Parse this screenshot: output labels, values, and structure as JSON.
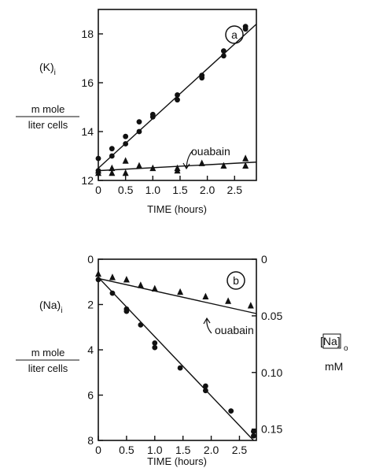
{
  "chart_data": [
    {
      "type": "scatter",
      "panel": "a",
      "ylabel_main": "(K)",
      "ylabel_sub": "i",
      "unit_num": "m mole",
      "unit_den": "liter cells",
      "xlabel": "TIME (hours)",
      "xlim": [
        0,
        2.9
      ],
      "ylim": [
        12,
        19
      ],
      "x_ticks": [
        "0",
        "0.5",
        "1.0",
        "1.5",
        "2.0",
        "2.5"
      ],
      "x_tick_values": [
        0,
        0.5,
        1.0,
        1.5,
        2.0,
        2.5
      ],
      "y_ticks": [
        "12",
        "14",
        "16",
        "18"
      ],
      "y_tick_values": [
        12,
        14,
        16,
        18
      ],
      "annotation": "ouabain",
      "series": [
        {
          "marker": "circle",
          "x": [
            0,
            0,
            0.25,
            0.25,
            0.5,
            0.5,
            0.75,
            0.75,
            1.0,
            1.0,
            1.45,
            1.45,
            1.9,
            1.9,
            2.3,
            2.3,
            2.7,
            2.7
          ],
          "y": [
            12.9,
            12.4,
            13.3,
            13.0,
            13.8,
            13.5,
            14.4,
            14.0,
            14.7,
            14.6,
            15.5,
            15.3,
            16.3,
            16.2,
            17.3,
            17.1,
            18.3,
            18.2
          ],
          "fit": [
            [
              0,
              12.5
            ],
            [
              2.9,
              18.4
            ]
          ]
        },
        {
          "marker": "triangle",
          "x": [
            0,
            0,
            0.25,
            0.25,
            0.5,
            0.5,
            0.75,
            1.0,
            1.45,
            1.45,
            1.9,
            2.3,
            2.7,
            2.7
          ],
          "y": [
            12.4,
            12.3,
            12.5,
            12.3,
            12.8,
            12.3,
            12.6,
            12.5,
            12.5,
            12.4,
            12.7,
            12.6,
            12.9,
            12.6
          ],
          "fit": [
            [
              0,
              12.4
            ],
            [
              2.9,
              12.75
            ]
          ]
        }
      ]
    },
    {
      "type": "scatter",
      "panel": "b",
      "ylabel_main": "(Na)",
      "ylabel_sub": "i",
      "unit_num": "m mole",
      "unit_den": "liter cells",
      "xlabel": "TIME (hours)",
      "xlim": [
        0,
        2.8
      ],
      "ylim": [
        0,
        8
      ],
      "y_inverted": true,
      "x_ticks": [
        "0",
        "0.5",
        "1.0",
        "1.5",
        "2.0",
        "2.5"
      ],
      "x_tick_values": [
        0,
        0.5,
        1.0,
        1.5,
        2.0,
        2.5
      ],
      "y_ticks": [
        "0",
        "2",
        "4",
        "6",
        "8"
      ],
      "y_tick_values": [
        0,
        2,
        4,
        6,
        8
      ],
      "right_axis": {
        "label_main": "[Na]",
        "label_sub": "o",
        "unit": "mM",
        "ticks": [
          "0",
          "0.05",
          "0.10",
          "0.15"
        ],
        "tick_values": [
          0,
          0.05,
          0.1,
          0.15
        ],
        "range": [
          0,
          0.16
        ]
      },
      "annotation": "ouabain",
      "series": [
        {
          "marker": "triangle",
          "axis": "right",
          "x": [
            0,
            0.25,
            0.5,
            0.75,
            1.0,
            1.45,
            1.9,
            2.3,
            2.7
          ],
          "y": [
            0.013,
            0.016,
            0.018,
            0.023,
            0.026,
            0.029,
            0.033,
            0.037,
            0.041
          ],
          "fit": [
            [
              0,
              0.017
            ],
            [
              2.8,
              0.048
            ]
          ]
        },
        {
          "marker": "circle",
          "axis": "left",
          "x": [
            0,
            0.25,
            0.5,
            0.5,
            0.75,
            1.0,
            1.0,
            1.45,
            1.9,
            1.9,
            2.35,
            2.75,
            2.75
          ],
          "y": [
            0.9,
            1.5,
            2.2,
            2.3,
            2.9,
            3.7,
            3.9,
            4.8,
            5.6,
            5.8,
            6.7,
            7.6,
            7.8
          ],
          "fit": [
            [
              0,
              0.8
            ],
            [
              2.75,
              8.0
            ]
          ]
        }
      ]
    }
  ]
}
